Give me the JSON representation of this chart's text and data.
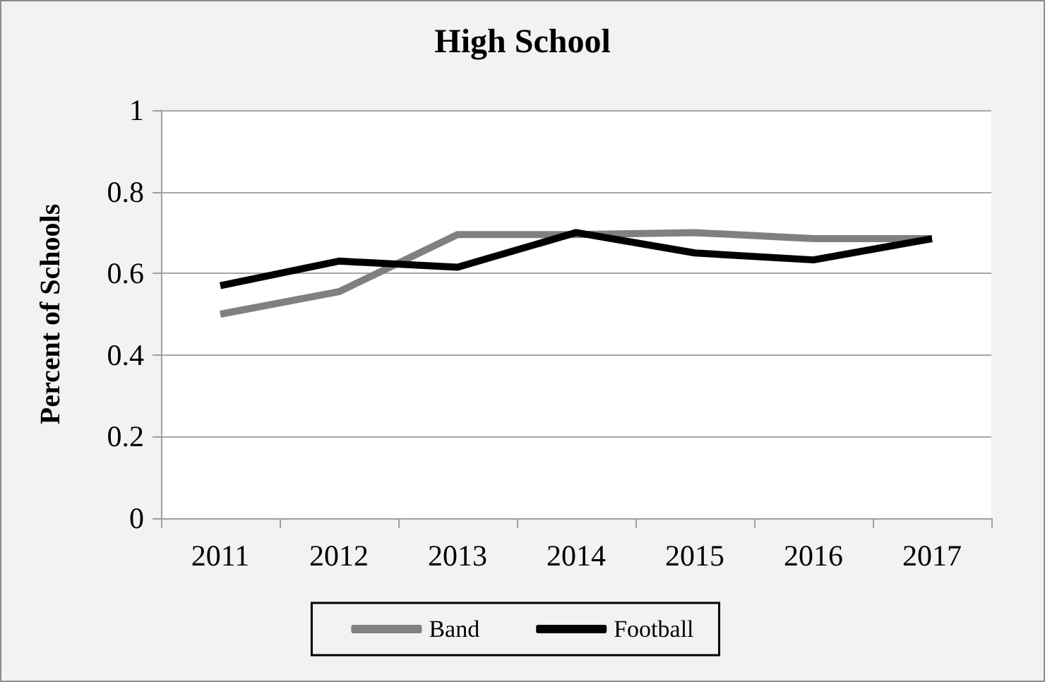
{
  "chart_data": {
    "type": "line",
    "title": "High School",
    "ylabel": "Percent of Schools",
    "categories": [
      "2011",
      "2012",
      "2013",
      "2014",
      "2015",
      "2016",
      "2017"
    ],
    "series": [
      {
        "name": "Band",
        "color": "#808080",
        "values": [
          0.5,
          0.555,
          0.695,
          0.695,
          0.7,
          0.685,
          0.685
        ]
      },
      {
        "name": "Football",
        "color": "#000000",
        "values": [
          0.57,
          0.63,
          0.615,
          0.7,
          0.65,
          0.633,
          0.685
        ]
      }
    ],
    "ylim": [
      0,
      1
    ],
    "yticks": [
      0,
      0.2,
      0.4,
      0.6,
      0.8,
      1
    ],
    "grid": "y",
    "legend": "bottom",
    "marker": "none",
    "line_style": "solid"
  }
}
